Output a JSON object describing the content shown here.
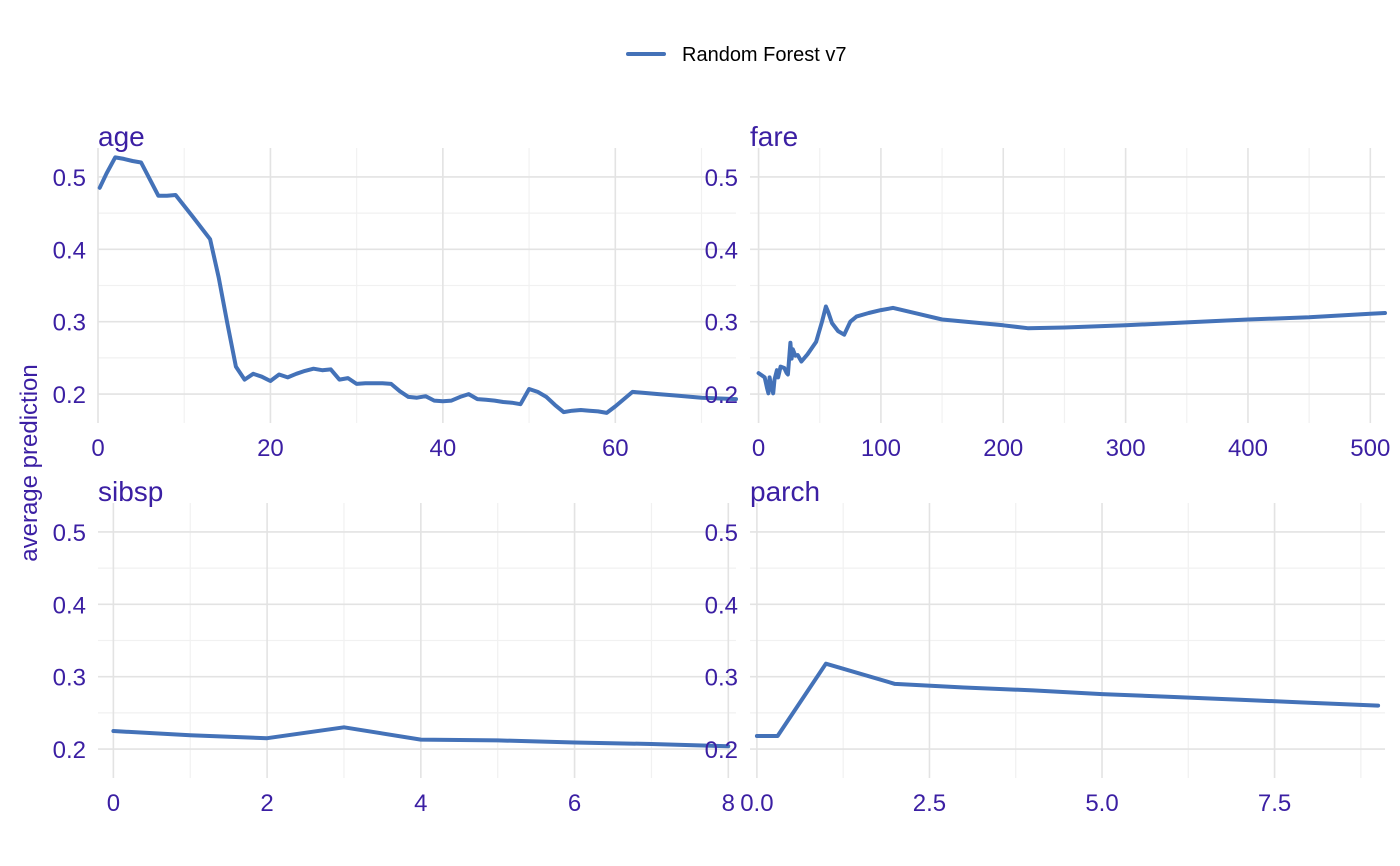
{
  "chart_data": {
    "type": "line",
    "legend": {
      "position": "top",
      "entries": [
        "Random Forest v7"
      ]
    },
    "series_name": "Random Forest v7",
    "colors": {
      "series": "#4472b8",
      "text": "#3b1fa3",
      "grid": "#e3e3e3"
    },
    "ylabel": "average prediction",
    "ylim": [
      0.16,
      0.54
    ],
    "yticks": [
      "0.2",
      "0.3",
      "0.4",
      "0.5"
    ],
    "ytick_values": [
      0.2,
      0.3,
      0.4,
      0.5
    ],
    "grid": true,
    "panels": [
      {
        "title": "age",
        "xlim": [
          0,
          74
        ],
        "xticks": [
          "0",
          "20",
          "40",
          "60"
        ],
        "xtick_values": [
          0,
          20,
          40,
          60
        ],
        "x": [
          0.2,
          1,
          2,
          3,
          4,
          5,
          6,
          7,
          8,
          9,
          11,
          13,
          14,
          15,
          16,
          17,
          18,
          19,
          20,
          21,
          22,
          23,
          24,
          25,
          26,
          27,
          28,
          29,
          30,
          31,
          32,
          33,
          34,
          35,
          36,
          37,
          38,
          39,
          40,
          41,
          42,
          43,
          44,
          45,
          46,
          47,
          48,
          49,
          50,
          51,
          52,
          53,
          54,
          55,
          56,
          57,
          58,
          59,
          60,
          61,
          62,
          63,
          65,
          67,
          70,
          74
        ],
        "y": [
          0.485,
          0.505,
          0.527,
          0.525,
          0.522,
          0.52,
          0.497,
          0.474,
          0.474,
          0.475,
          0.445,
          0.414,
          0.361,
          0.298,
          0.238,
          0.22,
          0.228,
          0.224,
          0.218,
          0.227,
          0.223,
          0.228,
          0.232,
          0.235,
          0.233,
          0.234,
          0.22,
          0.222,
          0.214,
          0.215,
          0.215,
          0.215,
          0.214,
          0.204,
          0.196,
          0.195,
          0.197,
          0.191,
          0.19,
          0.191,
          0.196,
          0.2,
          0.193,
          0.192,
          0.191,
          0.189,
          0.188,
          0.186,
          0.207,
          0.203,
          0.196,
          0.185,
          0.175,
          0.177,
          0.178,
          0.177,
          0.176,
          0.174,
          0.183,
          0.193,
          0.203,
          0.202,
          0.2,
          0.198,
          0.195,
          0.193
        ]
      },
      {
        "title": "fare",
        "xlim": [
          -7,
          512
        ],
        "xticks": [
          "0",
          "100",
          "200",
          "300",
          "400",
          "500"
        ],
        "xtick_values": [
          0,
          100,
          200,
          300,
          400,
          500
        ],
        "x": [
          0,
          5,
          7,
          8,
          9,
          10,
          12,
          13,
          15,
          16,
          18,
          21,
          23,
          24,
          26,
          27,
          28,
          30,
          32,
          35,
          40,
          47,
          52,
          55,
          57,
          60,
          65,
          70,
          75,
          80,
          90,
          100,
          110,
          130,
          150,
          200,
          220,
          250,
          300,
          350,
          400,
          450,
          500,
          512
        ],
        "y": [
          0.229,
          0.223,
          0.208,
          0.201,
          0.223,
          0.213,
          0.201,
          0.22,
          0.233,
          0.223,
          0.238,
          0.236,
          0.229,
          0.227,
          0.271,
          0.249,
          0.262,
          0.253,
          0.254,
          0.245,
          0.255,
          0.272,
          0.301,
          0.321,
          0.313,
          0.298,
          0.287,
          0.282,
          0.3,
          0.307,
          0.312,
          0.316,
          0.319,
          0.311,
          0.303,
          0.295,
          0.291,
          0.292,
          0.295,
          0.299,
          0.303,
          0.306,
          0.311,
          0.312
        ]
      },
      {
        "title": "sibsp",
        "xlim": [
          -0.2,
          8.1
        ],
        "xticks": [
          "0",
          "2",
          "4",
          "6",
          "8"
        ],
        "xtick_values": [
          0,
          2,
          4,
          6,
          8
        ],
        "x": [
          0,
          1,
          2,
          3,
          4,
          5,
          6,
          7,
          8
        ],
        "y": [
          0.225,
          0.219,
          0.215,
          0.23,
          0.213,
          0.212,
          0.209,
          0.207,
          0.204
        ]
      },
      {
        "title": "parch",
        "xlim": [
          -0.1,
          9.1
        ],
        "xticks": [
          "0.0",
          "2.5",
          "5.0",
          "7.5"
        ],
        "xtick_values": [
          0,
          2.5,
          5,
          7.5
        ],
        "x": [
          0,
          0.3,
          1,
          2,
          3,
          4,
          5,
          6,
          7,
          8,
          9
        ],
        "y": [
          0.218,
          0.218,
          0.318,
          0.29,
          0.285,
          0.281,
          0.276,
          0.272,
          0.268,
          0.264,
          0.26
        ]
      }
    ]
  }
}
